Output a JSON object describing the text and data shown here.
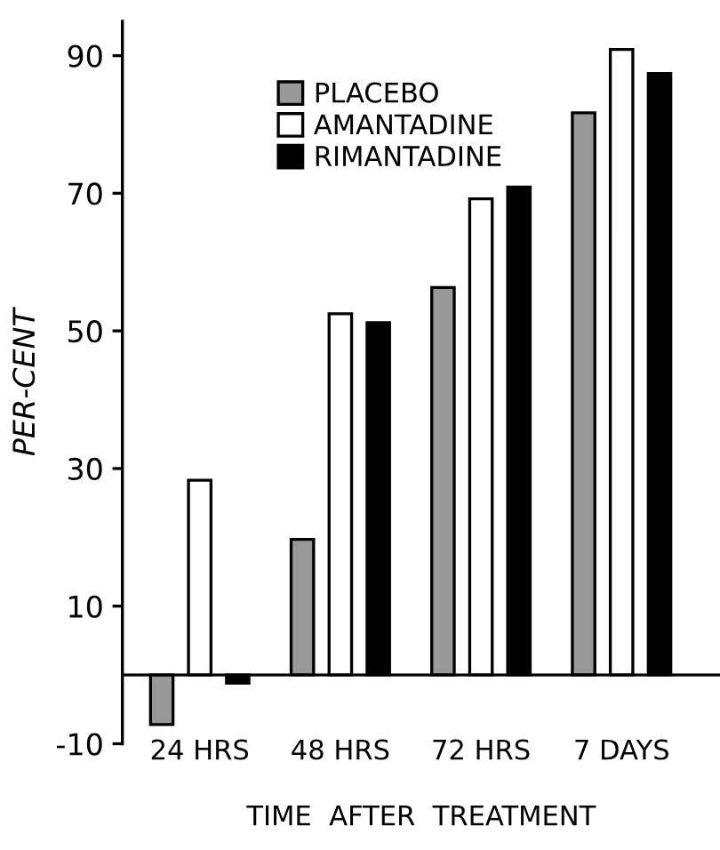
{
  "chart_data": {
    "type": "bar",
    "xlabel": "TIME  AFTER  TREATMENT",
    "ylabel": "PER-CENT",
    "categories": [
      "24 HRS",
      "48 HRS",
      "72 HRS",
      "7 DAYS"
    ],
    "series": [
      {
        "name": "PLACEBO",
        "color": "#999999",
        "values": [
          -7.2,
          19.7,
          56.3,
          81.7
        ]
      },
      {
        "name": "AMANTADINE",
        "color": "#ffffff",
        "values": [
          28.3,
          52.5,
          69.2,
          90.9
        ]
      },
      {
        "name": "RIMANTADINE",
        "color": "#000000",
        "values": [
          -1.2,
          51.2,
          70.9,
          87.4
        ]
      }
    ],
    "ylim": [
      -10,
      95
    ],
    "yticks": [
      -10,
      10,
      30,
      50,
      70,
      90
    ],
    "grid": false,
    "legend": "top left"
  }
}
